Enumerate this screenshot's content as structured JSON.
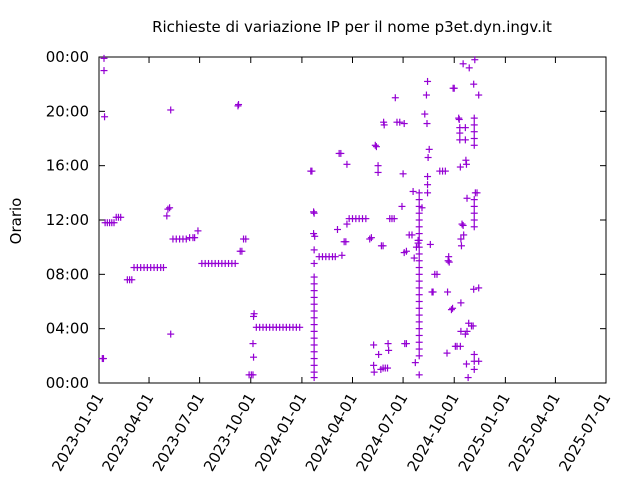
{
  "chart_data": {
    "type": "scatter",
    "title": "Richieste di variazione IP per il nome p3et.dyn.ingv.it",
    "xlabel": "",
    "ylabel": "Orario",
    "x_axis": "date",
    "xlim": [
      "2023-01-01",
      "2025-07-01"
    ],
    "ylim_hours": [
      0,
      24
    ],
    "x_ticks": [
      "2023-01-01",
      "2023-04-01",
      "2023-07-01",
      "2023-10-01",
      "2024-01-01",
      "2024-04-01",
      "2024-07-01",
      "2024-10-01",
      "2025-01-01",
      "2025-04-01",
      "2025-07-01"
    ],
    "y_ticks": [
      "00:00",
      "04:00",
      "08:00",
      "12:00",
      "16:00",
      "20:00",
      "00:00"
    ],
    "marker": "+",
    "color": "#9400d3",
    "grid": false,
    "points": [
      {
        "date": "2023-01-07",
        "hour": 1.8
      },
      {
        "date": "2023-01-09",
        "hour": 1.8
      },
      {
        "date": "2023-01-10",
        "hour": 23.9
      },
      {
        "date": "2023-01-10",
        "hour": 23.0
      },
      {
        "date": "2023-01-11",
        "hour": 19.6
      },
      {
        "date": "2023-01-12",
        "hour": 11.8
      },
      {
        "date": "2023-01-16",
        "hour": 11.8
      },
      {
        "date": "2023-01-20",
        "hour": 11.8
      },
      {
        "date": "2023-01-24",
        "hour": 11.8
      },
      {
        "date": "2023-01-28",
        "hour": 11.8
      },
      {
        "date": "2023-02-01",
        "hour": 12.2
      },
      {
        "date": "2023-02-05",
        "hour": 12.2
      },
      {
        "date": "2023-02-09",
        "hour": 12.2
      },
      {
        "date": "2023-02-21",
        "hour": 7.6
      },
      {
        "date": "2023-02-25",
        "hour": 7.6
      },
      {
        "date": "2023-03-01",
        "hour": 7.6
      },
      {
        "date": "2023-03-05",
        "hour": 8.5
      },
      {
        "date": "2023-03-11",
        "hour": 8.5
      },
      {
        "date": "2023-03-17",
        "hour": 8.5
      },
      {
        "date": "2023-03-23",
        "hour": 8.5
      },
      {
        "date": "2023-03-29",
        "hour": 8.5
      },
      {
        "date": "2023-04-04",
        "hour": 8.5
      },
      {
        "date": "2023-04-10",
        "hour": 8.5
      },
      {
        "date": "2023-04-16",
        "hour": 8.5
      },
      {
        "date": "2023-04-22",
        "hour": 8.5
      },
      {
        "date": "2023-04-27",
        "hour": 8.5
      },
      {
        "date": "2023-05-03",
        "hour": 12.3
      },
      {
        "date": "2023-05-05",
        "hour": 12.8
      },
      {
        "date": "2023-05-08",
        "hour": 12.9
      },
      {
        "date": "2023-05-10",
        "hour": 20.1
      },
      {
        "date": "2023-05-10",
        "hour": 3.6
      },
      {
        "date": "2023-05-14",
        "hour": 10.6
      },
      {
        "date": "2023-05-20",
        "hour": 10.6
      },
      {
        "date": "2023-05-26",
        "hour": 10.6
      },
      {
        "date": "2023-06-01",
        "hour": 10.6
      },
      {
        "date": "2023-06-07",
        "hour": 10.6
      },
      {
        "date": "2023-06-13",
        "hour": 10.7
      },
      {
        "date": "2023-06-19",
        "hour": 10.7
      },
      {
        "date": "2023-06-22",
        "hour": 10.7
      },
      {
        "date": "2023-06-28",
        "hour": 11.2
      },
      {
        "date": "2023-07-05",
        "hour": 8.8
      },
      {
        "date": "2023-07-11",
        "hour": 8.8
      },
      {
        "date": "2023-07-17",
        "hour": 8.8
      },
      {
        "date": "2023-07-23",
        "hour": 8.8
      },
      {
        "date": "2023-07-29",
        "hour": 8.8
      },
      {
        "date": "2023-08-04",
        "hour": 8.8
      },
      {
        "date": "2023-08-10",
        "hour": 8.8
      },
      {
        "date": "2023-08-16",
        "hour": 8.8
      },
      {
        "date": "2023-08-22",
        "hour": 8.8
      },
      {
        "date": "2023-08-28",
        "hour": 8.8
      },
      {
        "date": "2023-09-03",
        "hour": 8.8
      },
      {
        "date": "2023-09-08",
        "hour": 20.4
      },
      {
        "date": "2023-09-09",
        "hour": 20.5
      },
      {
        "date": "2023-09-12",
        "hour": 9.7
      },
      {
        "date": "2023-09-15",
        "hour": 9.7
      },
      {
        "date": "2023-09-18",
        "hour": 10.6
      },
      {
        "date": "2023-09-22",
        "hour": 10.6
      },
      {
        "date": "2023-09-28",
        "hour": 0.6
      },
      {
        "date": "2023-10-02",
        "hour": 0.6
      },
      {
        "date": "2023-10-05",
        "hour": 0.6
      },
      {
        "date": "2023-10-06",
        "hour": 4.9
      },
      {
        "date": "2023-10-07",
        "hour": 5.1
      },
      {
        "date": "2023-10-05",
        "hour": 2.9
      },
      {
        "date": "2023-10-06",
        "hour": 1.9
      },
      {
        "date": "2023-10-11",
        "hour": 4.1
      },
      {
        "date": "2023-10-17",
        "hour": 4.1
      },
      {
        "date": "2023-10-23",
        "hour": 4.1
      },
      {
        "date": "2023-10-29",
        "hour": 4.1
      },
      {
        "date": "2023-11-04",
        "hour": 4.1
      },
      {
        "date": "2023-11-10",
        "hour": 4.1
      },
      {
        "date": "2023-11-16",
        "hour": 4.1
      },
      {
        "date": "2023-11-22",
        "hour": 4.1
      },
      {
        "date": "2023-11-28",
        "hour": 4.1
      },
      {
        "date": "2023-12-04",
        "hour": 4.1
      },
      {
        "date": "2023-12-10",
        "hour": 4.1
      },
      {
        "date": "2023-12-16",
        "hour": 4.1
      },
      {
        "date": "2023-12-22",
        "hour": 4.1
      },
      {
        "date": "2023-12-28",
        "hour": 4.1
      },
      {
        "date": "2024-01-17",
        "hour": 15.6
      },
      {
        "date": "2024-01-19",
        "hour": 15.6
      },
      {
        "date": "2024-01-22",
        "hour": 12.6
      },
      {
        "date": "2024-01-23",
        "hour": 12.5
      },
      {
        "date": "2024-01-22",
        "hour": 11.0
      },
      {
        "date": "2024-01-24",
        "hour": 10.8
      },
      {
        "date": "2024-01-23",
        "hour": 9.8
      },
      {
        "date": "2024-01-23",
        "hour": 8.8
      },
      {
        "date": "2024-01-23",
        "hour": 7.8
      },
      {
        "date": "2024-01-23",
        "hour": 7.3
      },
      {
        "date": "2024-01-23",
        "hour": 6.8
      },
      {
        "date": "2024-01-23",
        "hour": 6.3
      },
      {
        "date": "2024-01-23",
        "hour": 5.8
      },
      {
        "date": "2024-01-23",
        "hour": 5.3
      },
      {
        "date": "2024-01-23",
        "hour": 4.8
      },
      {
        "date": "2024-01-23",
        "hour": 4.3
      },
      {
        "date": "2024-01-23",
        "hour": 3.8
      },
      {
        "date": "2024-01-23",
        "hour": 3.3
      },
      {
        "date": "2024-01-23",
        "hour": 2.8
      },
      {
        "date": "2024-01-23",
        "hour": 2.3
      },
      {
        "date": "2024-01-23",
        "hour": 1.8
      },
      {
        "date": "2024-01-23",
        "hour": 1.3
      },
      {
        "date": "2024-01-23",
        "hour": 0.8
      },
      {
        "date": "2024-01-23",
        "hour": 0.4
      },
      {
        "date": "2024-02-01",
        "hour": 9.3
      },
      {
        "date": "2024-02-07",
        "hour": 9.3
      },
      {
        "date": "2024-02-13",
        "hour": 9.3
      },
      {
        "date": "2024-02-19",
        "hour": 9.3
      },
      {
        "date": "2024-02-25",
        "hour": 9.3
      },
      {
        "date": "2024-03-01",
        "hour": 9.3
      },
      {
        "date": "2024-03-05",
        "hour": 11.3
      },
      {
        "date": "2024-03-08",
        "hour": 16.9
      },
      {
        "date": "2024-03-11",
        "hour": 16.9
      },
      {
        "date": "2024-03-13",
        "hour": 9.4
      },
      {
        "date": "2024-03-17",
        "hour": 10.4
      },
      {
        "date": "2024-03-20",
        "hour": 10.4
      },
      {
        "date": "2024-03-22",
        "hour": 16.1
      },
      {
        "date": "2024-03-22",
        "hour": 11.7
      },
      {
        "date": "2024-03-26",
        "hour": 12.1
      },
      {
        "date": "2024-04-01",
        "hour": 12.1
      },
      {
        "date": "2024-04-07",
        "hour": 12.1
      },
      {
        "date": "2024-04-13",
        "hour": 12.1
      },
      {
        "date": "2024-04-19",
        "hour": 12.1
      },
      {
        "date": "2024-04-25",
        "hour": 12.1
      },
      {
        "date": "2024-05-02",
        "hour": 10.6
      },
      {
        "date": "2024-05-05",
        "hour": 10.7
      },
      {
        "date": "2024-05-09",
        "hour": 2.8
      },
      {
        "date": "2024-05-09",
        "hour": 1.3
      },
      {
        "date": "2024-05-10",
        "hour": 0.8
      },
      {
        "date": "2024-05-12",
        "hour": 17.5
      },
      {
        "date": "2024-05-14",
        "hour": 17.4
      },
      {
        "date": "2024-05-18",
        "hour": 2.1
      },
      {
        "date": "2024-05-22",
        "hour": 1.0
      },
      {
        "date": "2024-05-23",
        "hour": 10.1
      },
      {
        "date": "2024-05-26",
        "hour": 10.1
      },
      {
        "date": "2024-05-26",
        "hour": 1.1
      },
      {
        "date": "2024-05-30",
        "hour": 1.1
      },
      {
        "date": "2024-06-03",
        "hour": 1.1
      },
      {
        "date": "2024-05-27",
        "hour": 19.2
      },
      {
        "date": "2024-05-28",
        "hour": 19.0
      },
      {
        "date": "2024-05-17",
        "hour": 16.0
      },
      {
        "date": "2024-05-17",
        "hour": 15.5
      },
      {
        "date": "2024-06-04",
        "hour": 2.9
      },
      {
        "date": "2024-06-05",
        "hour": 2.4
      },
      {
        "date": "2024-06-07",
        "hour": 12.1
      },
      {
        "date": "2024-06-11",
        "hour": 12.1
      },
      {
        "date": "2024-06-15",
        "hour": 12.1
      },
      {
        "date": "2024-06-17",
        "hour": 21.0
      },
      {
        "date": "2024-06-20",
        "hour": 19.2
      },
      {
        "date": "2024-06-25",
        "hour": 19.2
      },
      {
        "date": "2024-06-29",
        "hour": 13.0
      },
      {
        "date": "2024-07-01",
        "hour": 15.4
      },
      {
        "date": "2024-07-03",
        "hour": 9.6
      },
      {
        "date": "2024-07-07",
        "hour": 9.7
      },
      {
        "date": "2024-07-04",
        "hour": 2.9
      },
      {
        "date": "2024-07-07",
        "hour": 2.9
      },
      {
        "date": "2024-07-03",
        "hour": 19.1
      },
      {
        "date": "2024-07-12",
        "hour": 10.9
      },
      {
        "date": "2024-07-17",
        "hour": 10.9
      },
      {
        "date": "2024-07-19",
        "hour": 14.1
      },
      {
        "date": "2024-07-21",
        "hour": 9.2
      },
      {
        "date": "2024-07-25",
        "hour": 10.0
      },
      {
        "date": "2024-07-23",
        "hour": 1.5
      },
      {
        "date": "2024-07-28",
        "hour": 10.3
      },
      {
        "date": "2024-07-28",
        "hour": 10.5
      },
      {
        "date": "2024-07-30",
        "hour": 14.0
      },
      {
        "date": "2024-07-30",
        "hour": 13.5
      },
      {
        "date": "2024-07-30",
        "hour": 13.0
      },
      {
        "date": "2024-07-30",
        "hour": 12.5
      },
      {
        "date": "2024-07-30",
        "hour": 12.0
      },
      {
        "date": "2024-07-30",
        "hour": 11.5
      },
      {
        "date": "2024-07-30",
        "hour": 11.0
      },
      {
        "date": "2024-07-30",
        "hour": 10.5
      },
      {
        "date": "2024-07-30",
        "hour": 10.0
      },
      {
        "date": "2024-07-30",
        "hour": 9.5
      },
      {
        "date": "2024-07-30",
        "hour": 9.0
      },
      {
        "date": "2024-07-30",
        "hour": 8.5
      },
      {
        "date": "2024-07-30",
        "hour": 8.0
      },
      {
        "date": "2024-07-30",
        "hour": 7.5
      },
      {
        "date": "2024-07-30",
        "hour": 7.0
      },
      {
        "date": "2024-07-30",
        "hour": 6.5
      },
      {
        "date": "2024-07-30",
        "hour": 6.0
      },
      {
        "date": "2024-07-30",
        "hour": 5.5
      },
      {
        "date": "2024-07-30",
        "hour": 5.0
      },
      {
        "date": "2024-07-30",
        "hour": 4.5
      },
      {
        "date": "2024-07-30",
        "hour": 4.0
      },
      {
        "date": "2024-07-30",
        "hour": 3.5
      },
      {
        "date": "2024-07-30",
        "hour": 3.0
      },
      {
        "date": "2024-07-30",
        "hour": 2.5
      },
      {
        "date": "2024-07-30",
        "hour": 2.0
      },
      {
        "date": "2024-07-30",
        "hour": 0.6
      },
      {
        "date": "2024-08-04",
        "hour": 12.9
      },
      {
        "date": "2024-08-09",
        "hour": 19.8
      },
      {
        "date": "2024-08-12",
        "hour": 21.2
      },
      {
        "date": "2024-08-13",
        "hour": 19.1
      },
      {
        "date": "2024-08-15",
        "hour": 16.6
      },
      {
        "date": "2024-08-17",
        "hour": 17.2
      },
      {
        "date": "2024-08-14",
        "hour": 15.2
      },
      {
        "date": "2024-08-14",
        "hour": 14.6
      },
      {
        "date": "2024-08-14",
        "hour": 14.0
      },
      {
        "date": "2024-08-14",
        "hour": 22.2
      },
      {
        "date": "2024-08-19",
        "hour": 10.2
      },
      {
        "date": "2024-08-22",
        "hour": 6.7
      },
      {
        "date": "2024-08-24",
        "hour": 6.7
      },
      {
        "date": "2024-08-27",
        "hour": 8.0
      },
      {
        "date": "2024-08-31",
        "hour": 8.0
      },
      {
        "date": "2024-09-05",
        "hour": 15.6
      },
      {
        "date": "2024-09-10",
        "hour": 15.6
      },
      {
        "date": "2024-09-15",
        "hour": 15.6
      },
      {
        "date": "2024-09-18",
        "hour": 2.2
      },
      {
        "date": "2024-09-19",
        "hour": 6.7
      },
      {
        "date": "2024-09-20",
        "hour": 9.0
      },
      {
        "date": "2024-09-21",
        "hour": 9.3
      },
      {
        "date": "2024-09-22",
        "hour": 8.9
      },
      {
        "date": "2024-09-26",
        "hour": 5.4
      },
      {
        "date": "2024-09-28",
        "hour": 5.5
      },
      {
        "date": "2024-09-29",
        "hour": 21.7
      },
      {
        "date": "2024-10-01",
        "hour": 21.7
      },
      {
        "date": "2024-10-03",
        "hour": 2.7
      },
      {
        "date": "2024-10-06",
        "hour": 2.7
      },
      {
        "date": "2024-10-09",
        "hour": 19.5
      },
      {
        "date": "2024-10-10",
        "hour": 19.4
      },
      {
        "date": "2024-10-11",
        "hour": 18.8
      },
      {
        "date": "2024-10-11",
        "hour": 18.4
      },
      {
        "date": "2024-10-11",
        "hour": 17.9
      },
      {
        "date": "2024-10-12",
        "hour": 15.9
      },
      {
        "date": "2024-10-13",
        "hour": 10.6
      },
      {
        "date": "2024-10-14",
        "hour": 10.1
      },
      {
        "date": "2024-10-13",
        "hour": 5.9
      },
      {
        "date": "2024-10-13",
        "hour": 3.8
      },
      {
        "date": "2024-10-12",
        "hour": 2.7
      },
      {
        "date": "2024-10-15",
        "hour": 11.7
      },
      {
        "date": "2024-10-17",
        "hour": 11.6
      },
      {
        "date": "2024-10-18",
        "hour": 10.9
      },
      {
        "date": "2024-10-17",
        "hour": 23.5
      },
      {
        "date": "2024-10-21",
        "hour": 17.9
      },
      {
        "date": "2024-10-21",
        "hour": 18.8
      },
      {
        "date": "2024-10-22",
        "hour": 16.4
      },
      {
        "date": "2024-10-23",
        "hour": 16.1
      },
      {
        "date": "2024-10-21",
        "hour": 3.6
      },
      {
        "date": "2024-10-24",
        "hour": 3.8
      },
      {
        "date": "2024-10-27",
        "hour": 4.4
      },
      {
        "date": "2024-10-23",
        "hour": 1.4
      },
      {
        "date": "2024-10-26",
        "hour": 0.4
      },
      {
        "date": "2024-10-24",
        "hour": 13.6
      },
      {
        "date": "2024-10-28",
        "hour": 23.2
      },
      {
        "date": "2024-11-01",
        "hour": 4.2
      },
      {
        "date": "2024-11-04",
        "hour": 4.2
      },
      {
        "date": "2024-11-06",
        "hour": 19.5
      },
      {
        "date": "2024-11-06",
        "hour": 19.0
      },
      {
        "date": "2024-11-06",
        "hour": 18.5
      },
      {
        "date": "2024-11-06",
        "hour": 18.0
      },
      {
        "date": "2024-11-06",
        "hour": 17.5
      },
      {
        "date": "2024-11-06",
        "hour": 13.5
      },
      {
        "date": "2024-11-06",
        "hour": 13.0
      },
      {
        "date": "2024-11-06",
        "hour": 12.5
      },
      {
        "date": "2024-11-06",
        "hour": 12.0
      },
      {
        "date": "2024-11-06",
        "hour": 11.5
      },
      {
        "date": "2024-11-05",
        "hour": 22.0
      },
      {
        "date": "2024-11-07",
        "hour": 23.8
      },
      {
        "date": "2024-11-06",
        "hour": 2.1
      },
      {
        "date": "2024-11-06",
        "hour": 1.6
      },
      {
        "date": "2024-11-06",
        "hour": 1.0
      },
      {
        "date": "2024-11-05",
        "hour": 6.9
      },
      {
        "date": "2024-11-08",
        "hour": 14.0
      },
      {
        "date": "2024-11-11",
        "hour": 14.0
      },
      {
        "date": "2024-11-14",
        "hour": 21.2
      },
      {
        "date": "2024-11-14",
        "hour": 7.0
      },
      {
        "date": "2024-11-14",
        "hour": 1.6
      }
    ]
  }
}
